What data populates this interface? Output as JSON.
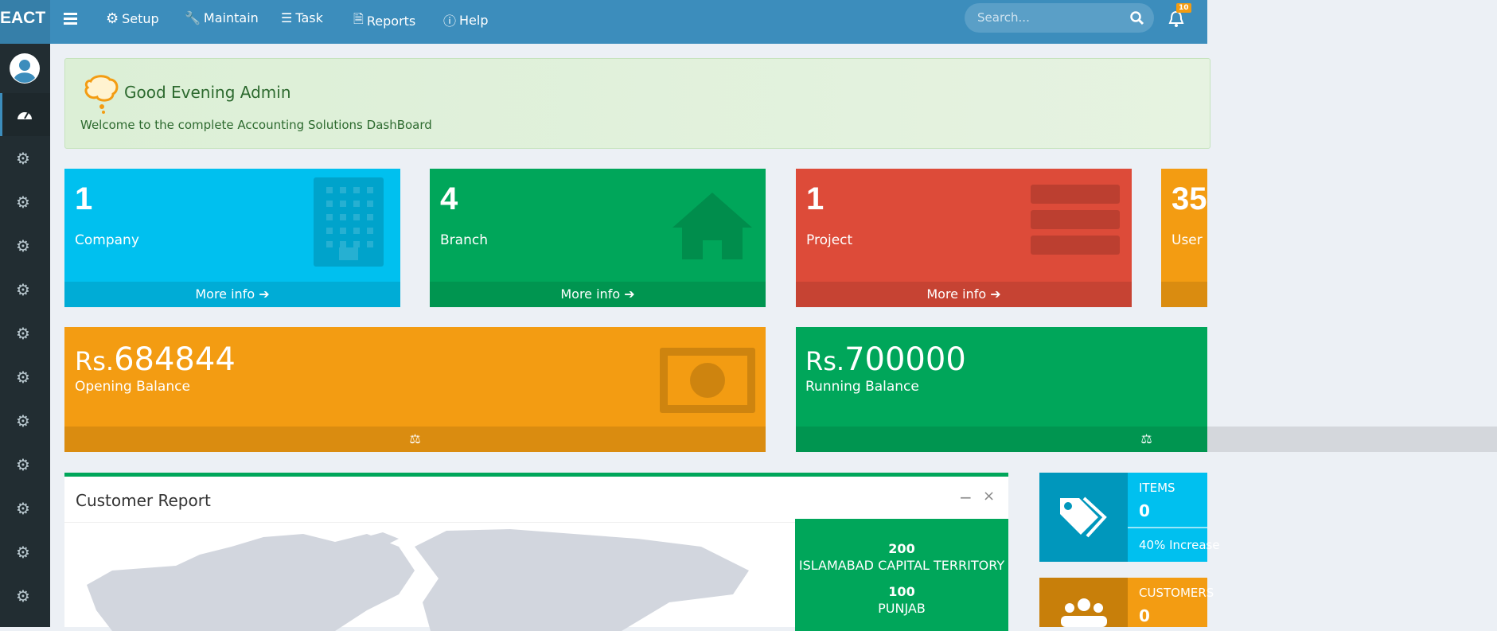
{
  "topbar": {
    "brand": "EACT",
    "menu": [
      "Setup",
      "Maintain",
      "Task",
      "Reports",
      "Help"
    ],
    "search_placeholder": "Search...",
    "notification_count": 10
  },
  "greeting": {
    "title": "Good Evening Admin",
    "subtitle": "Welcome to the complete Accounting Solutions DashBoard"
  },
  "stat_boxes": [
    {
      "value": 1,
      "label": "Company",
      "link": "More info"
    },
    {
      "value": 4,
      "label": "Branch",
      "link": "More info"
    },
    {
      "value": 1,
      "label": "Project",
      "link": "More info"
    },
    {
      "value": 35,
      "label": "User"
    }
  ],
  "balances": [
    {
      "prefix": "Rs.",
      "value": 684844,
      "label": "Opening Balance"
    },
    {
      "prefix": "Rs.",
      "value": 700000,
      "label": "Running Balance"
    }
  ],
  "customer_report": {
    "title": "Customer Report",
    "regions": [
      {
        "count": 200,
        "name": "ISLAMABAD CAPITAL TERRITORY"
      },
      {
        "count": 100,
        "name": "PUNJAB"
      }
    ]
  },
  "info_boxes": [
    {
      "label": "ITEMS",
      "value": 0,
      "note": "40% Increase"
    },
    {
      "label": "CUSTOMERS",
      "value": 0
    }
  ]
}
